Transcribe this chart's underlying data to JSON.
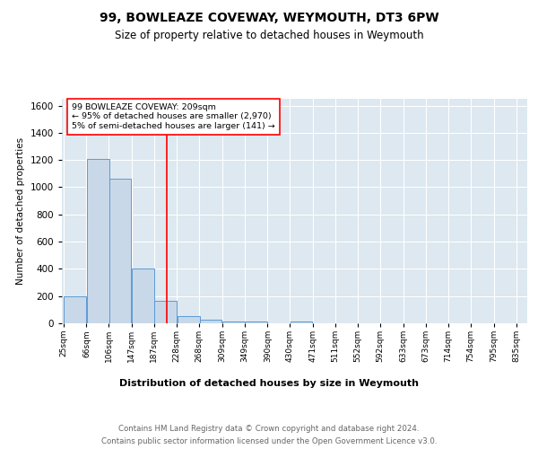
{
  "title": "99, BOWLEAZE COVEWAY, WEYMOUTH, DT3 6PW",
  "subtitle": "Size of property relative to detached houses in Weymouth",
  "xlabel": "Distribution of detached houses by size in Weymouth",
  "ylabel": "Number of detached properties",
  "bar_color": "#c8d8e8",
  "bar_edge_color": "#5b9bd5",
  "background_color": "#dde8f0",
  "red_line_x": 209,
  "annotation_line1": "99 BOWLEAZE COVEWAY: 209sqm",
  "annotation_line2": "← 95% of detached houses are smaller (2,970)",
  "annotation_line3": "5% of semi-detached houses are larger (141) →",
  "footer1": "Contains HM Land Registry data © Crown copyright and database right 2024.",
  "footer2": "Contains public sector information licensed under the Open Government Licence v3.0.",
  "bins": [
    25,
    66,
    106,
    147,
    187,
    228,
    268,
    309,
    349,
    390,
    430,
    471,
    511,
    552,
    592,
    633,
    673,
    714,
    754,
    795,
    835
  ],
  "counts": [
    200,
    1210,
    1065,
    400,
    165,
    55,
    25,
    15,
    15,
    0,
    15,
    0,
    0,
    0,
    0,
    0,
    0,
    0,
    0,
    0
  ],
  "ylim_max": 1650,
  "bin_width": 41,
  "yticks": [
    0,
    200,
    400,
    600,
    800,
    1000,
    1200,
    1400,
    1600
  ]
}
